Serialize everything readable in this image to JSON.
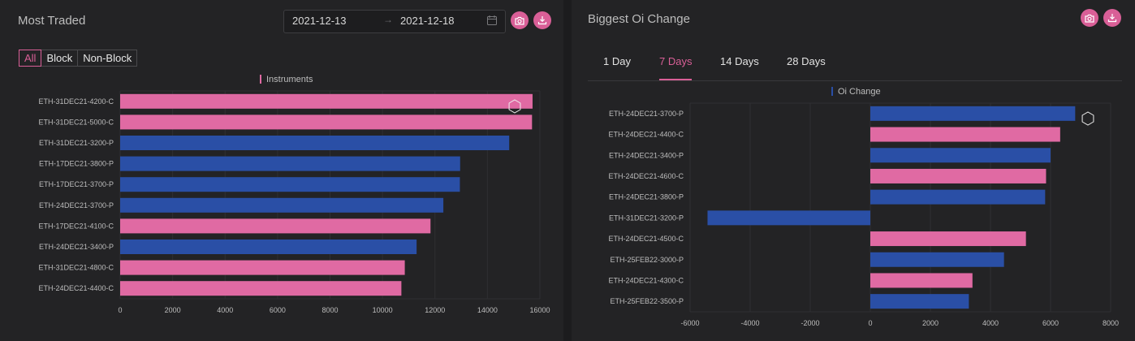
{
  "colors": {
    "pink": "#e06aa3",
    "blue": "#2a4fa6",
    "accent": "#d95f97"
  },
  "most_traded": {
    "title": "Most Traded",
    "date_start": "2021-12-13",
    "date_sep": "→",
    "date_end": "2021-12-18",
    "filters": [
      "All",
      "Block",
      "Non-Block"
    ],
    "active_filter": "All",
    "icons": {
      "camera": "camera-icon",
      "download": "download-icon",
      "calendar": "calendar-icon"
    }
  },
  "biggest_oi": {
    "title": "Biggest Oi Change",
    "tabs": [
      "1 Day",
      "7 Days",
      "14 Days",
      "28 Days"
    ],
    "active_tab": "7 Days",
    "icons": {
      "camera": "camera-icon",
      "download": "download-icon"
    }
  },
  "chart_data": [
    {
      "type": "bar",
      "orientation": "horizontal",
      "legend": [
        "Instruments"
      ],
      "legend_position": "top-center",
      "categories": [
        "ETH-31DEC21-4200-C",
        "ETH-31DEC21-5000-C",
        "ETH-31DEC21-3200-P",
        "ETH-17DEC21-3800-P",
        "ETH-17DEC21-3700-P",
        "ETH-24DEC21-3700-P",
        "ETH-17DEC21-4100-C",
        "ETH-24DEC21-3400-P",
        "ETH-31DEC21-4800-C",
        "ETH-24DEC21-4400-C"
      ],
      "values": [
        15720,
        15700,
        14830,
        12960,
        12950,
        12320,
        11830,
        11300,
        10850,
        10720
      ],
      "xlim": [
        0,
        16000
      ],
      "xticks": [
        0,
        2000,
        4000,
        6000,
        8000,
        10000,
        12000,
        14000,
        16000
      ],
      "grid": true
    },
    {
      "type": "bar",
      "orientation": "horizontal",
      "legend": [
        "Oi Change"
      ],
      "legend_position": "top-center",
      "categories": [
        "ETH-24DEC21-3700-P",
        "ETH-24DEC21-4400-C",
        "ETH-24DEC21-3400-P",
        "ETH-24DEC21-4600-C",
        "ETH-24DEC21-3800-P",
        "ETH-31DEC21-3200-P",
        "ETH-24DEC21-4500-C",
        "ETH-25FEB22-3000-P",
        "ETH-24DEC21-4300-C",
        "ETH-25FEB22-3500-P"
      ],
      "values": [
        6820,
        6320,
        6000,
        5850,
        5820,
        -5420,
        5180,
        4450,
        3400,
        3280
      ],
      "xlim": [
        -6000,
        8000
      ],
      "xticks": [
        -6000,
        -4000,
        -2000,
        0,
        2000,
        4000,
        6000,
        8000
      ],
      "grid": true
    }
  ]
}
